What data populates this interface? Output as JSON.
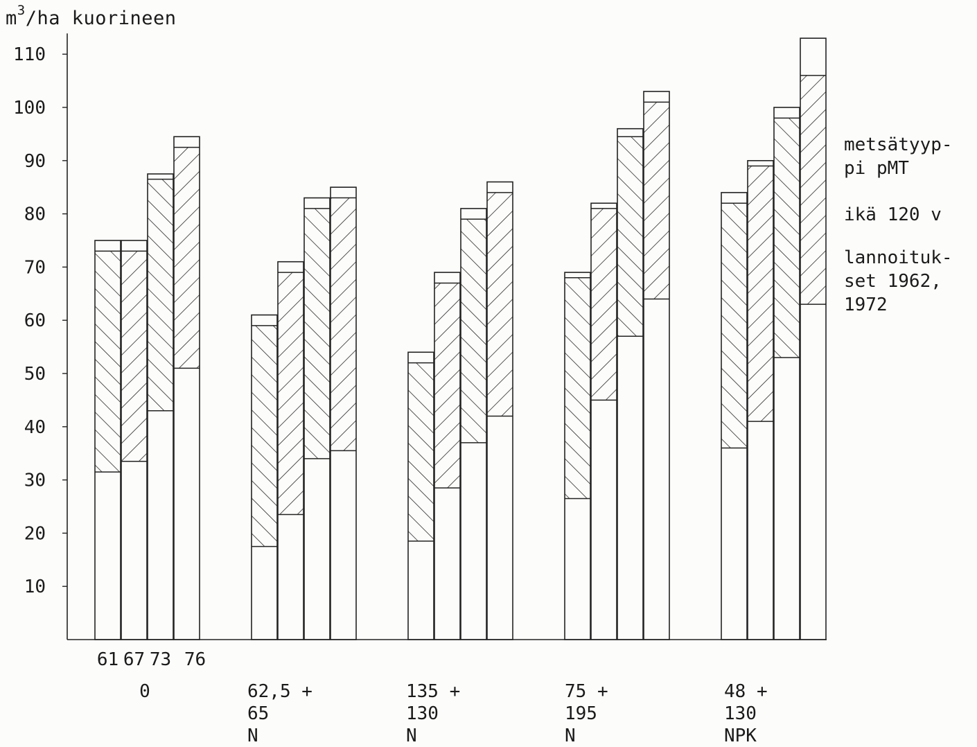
{
  "chart_data": {
    "type": "bar",
    "ylabel_unit": "m",
    "ylabel_exp": "3",
    "ylabel_rest": "/ha kuorineen",
    "yticks": [
      10,
      20,
      30,
      40,
      50,
      60,
      70,
      80,
      90,
      100,
      110
    ],
    "ylim": [
      0,
      110
    ],
    "year_labels": [
      "61",
      "67",
      "73",
      "76"
    ],
    "groups": [
      {
        "label_lines": [
          "0"
        ],
        "bars": [
          {
            "year": "61",
            "base": 31.5,
            "hatch_top": 73,
            "total": 75
          },
          {
            "year": "67",
            "base": 33.5,
            "hatch_top": 73,
            "total": 75
          },
          {
            "year": "73",
            "base": 43,
            "hatch_top": 86.5,
            "total": 87.5
          },
          {
            "year": "76",
            "base": 51,
            "hatch_top": 92.5,
            "total": 94.5
          }
        ]
      },
      {
        "label_lines": [
          "62,5 +",
          "65",
          "N"
        ],
        "bars": [
          {
            "year": "61",
            "base": 17.5,
            "hatch_top": 59,
            "total": 61
          },
          {
            "year": "67",
            "base": 23.5,
            "hatch_top": 69,
            "total": 71
          },
          {
            "year": "73",
            "base": 34,
            "hatch_top": 81,
            "total": 83
          },
          {
            "year": "76",
            "base": 35.5,
            "hatch_top": 83,
            "total": 85
          }
        ]
      },
      {
        "label_lines": [
          "135 +",
          "130",
          "N"
        ],
        "bars": [
          {
            "year": "61",
            "base": 18.5,
            "hatch_top": 52,
            "total": 54
          },
          {
            "year": "67",
            "base": 28.5,
            "hatch_top": 67,
            "total": 69
          },
          {
            "year": "73",
            "base": 37,
            "hatch_top": 79,
            "total": 81
          },
          {
            "year": "76",
            "base": 42,
            "hatch_top": 84,
            "total": 86
          }
        ]
      },
      {
        "label_lines": [
          "75 +",
          "195",
          "N"
        ],
        "bars": [
          {
            "year": "61",
            "base": 26.5,
            "hatch_top": 68,
            "total": 69
          },
          {
            "year": "67",
            "base": 45,
            "hatch_top": 81,
            "total": 82
          },
          {
            "year": "73",
            "base": 57,
            "hatch_top": 94.5,
            "total": 96
          },
          {
            "year": "76",
            "base": 64,
            "hatch_top": 101,
            "total": 103
          }
        ]
      },
      {
        "label_lines": [
          "48 +",
          "130",
          "NPK"
        ],
        "bars": [
          {
            "year": "61",
            "base": 36,
            "hatch_top": 82,
            "total": 84
          },
          {
            "year": "67",
            "base": 41,
            "hatch_top": 89,
            "total": 90
          },
          {
            "year": "73",
            "base": 53,
            "hatch_top": 98,
            "total": 100
          },
          {
            "year": "76",
            "base": 63,
            "hatch_top": 106,
            "total": 113
          }
        ]
      }
    ],
    "annotations": [
      {
        "lines": [
          "metsätyyp-",
          "pi pMT"
        ]
      },
      {
        "lines": [
          "ikä 120 v"
        ]
      },
      {
        "lines": [
          "lannoituk-",
          "set 1962,",
          "1972"
        ]
      }
    ]
  }
}
